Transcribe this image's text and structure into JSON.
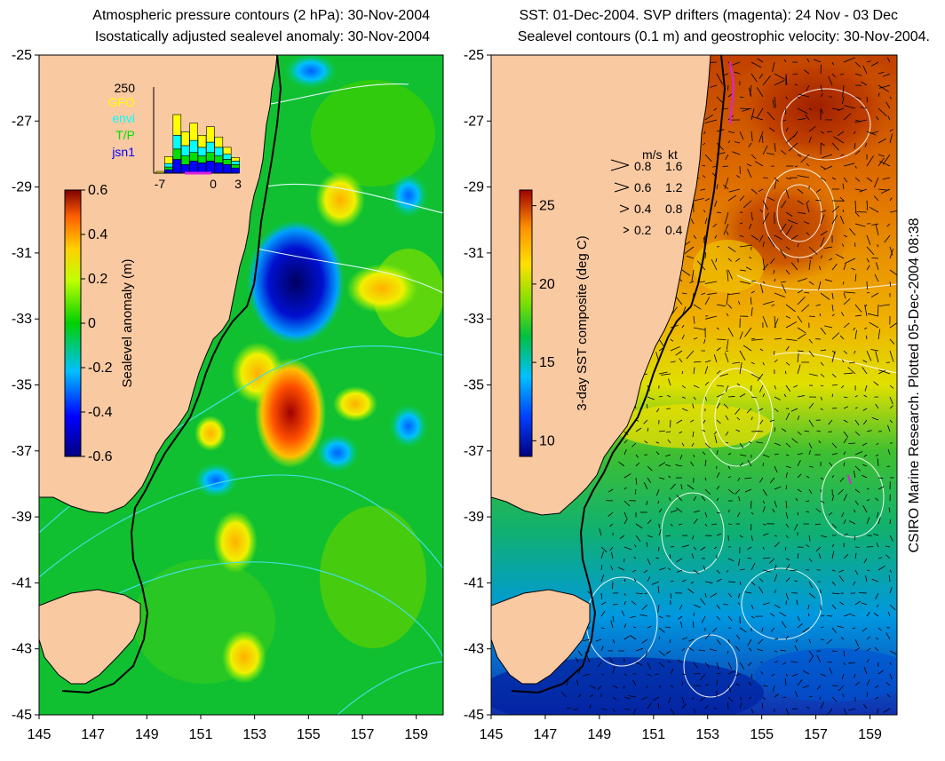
{
  "left_panel": {
    "title_line1": "Atmospheric pressure contours (2 hPa): 30-Nov-2004",
    "title_line2": "Isostatically adjusted sealevel anomaly: 30-Nov-2004",
    "colorbar": {
      "label": "Sealevel anomaly (m)",
      "ticks": [
        "0.6",
        "0.4",
        "0.2",
        "0",
        "-0.2",
        "-0.4",
        "-0.6"
      ],
      "range": [
        -0.6,
        0.6
      ]
    },
    "inset": {
      "ymax_label": "250",
      "satellites": [
        {
          "name": "GFO",
          "color": "#ffff00"
        },
        {
          "name": "envi",
          "color": "#00ffff"
        },
        {
          "name": "T/P",
          "color": "#00e000"
        },
        {
          "name": "jsn1",
          "color": "#0000ff"
        }
      ],
      "x_tick_labels": [
        "-7",
        "0",
        "3"
      ],
      "stacked_counts": [
        [
          5,
          0,
          0,
          0
        ],
        [
          20,
          10,
          8,
          10
        ],
        [
          60,
          40,
          30,
          40
        ],
        [
          40,
          30,
          25,
          25
        ],
        [
          50,
          35,
          25,
          35
        ],
        [
          35,
          25,
          20,
          30
        ],
        [
          45,
          30,
          25,
          35
        ],
        [
          30,
          25,
          20,
          30
        ],
        [
          20,
          15,
          15,
          25
        ],
        [
          10,
          10,
          10,
          15
        ]
      ]
    }
  },
  "right_panel": {
    "title_line1": "SST: 01-Dec-2004. SVP drifters (magenta): 24 Nov - 03 Dec",
    "title_line2": "Sealevel contours (0.1 m) and geostrophic velocity: 30-Nov-2004.",
    "colorbar": {
      "label": "3-day SST composite (deg C)",
      "ticks": [
        "25",
        "20",
        "15",
        "10"
      ],
      "range": [
        9,
        26
      ]
    },
    "velocity_legend": {
      "header_ms": "m/s",
      "header_kt": "kt",
      "rows": [
        {
          "ms": "0.8",
          "kt": "1.6"
        },
        {
          "ms": "0.6",
          "kt": "1.2"
        },
        {
          "ms": "0.4",
          "kt": "0.8"
        },
        {
          "ms": "0.2",
          "kt": "0.4"
        }
      ]
    }
  },
  "axes": {
    "y_tick_labels": [
      "-25",
      "-27",
      "-29",
      "-31",
      "-33",
      "-35",
      "-37",
      "-39",
      "-41",
      "-43",
      "-45"
    ],
    "x_tick_labels": [
      "145",
      "147",
      "149",
      "151",
      "153",
      "155",
      "157",
      "159"
    ],
    "lat_range": [
      -45,
      -25
    ],
    "lon_range": [
      145,
      160
    ]
  },
  "credit": "CSIRO Marine Research. Plotted 05-Dec-2004 08:38",
  "colors": {
    "land": "#f9c9a2",
    "coast": "#000000",
    "pressure_contour": "#40e0e0",
    "sealevel_contour": "#ffffff",
    "drifter": "#e020e0"
  }
}
